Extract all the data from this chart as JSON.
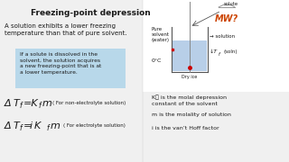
{
  "background_color": "#f0f0f0",
  "title": "Freezing-point depression",
  "subtitle": "A solution exhibits a lower freezing\ntemperature than that of pure solvent.",
  "box_text": "If a solute is dissolved in the\nsolvent, the solution acquires\na new freezing-point that is at\na lower temperature.",
  "box_color": "#b8d8ea",
  "right_text1": "K₟ is the molal depression\nconstant of the solvent",
  "right_text2": "m is the molality of solution",
  "right_text3": "i is the van’t Hoff factor",
  "font_color": "#1a1a1a",
  "diagram_bg": "#f0f0f0"
}
